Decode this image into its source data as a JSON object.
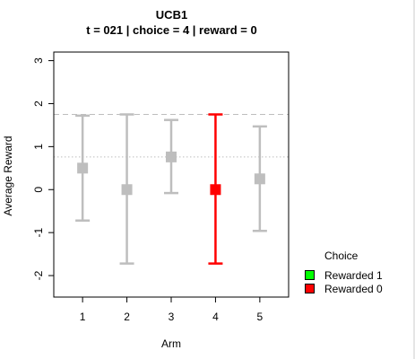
{
  "chart_data": {
    "type": "scatter",
    "title": "UCB1",
    "subtitle": "t = 021 | choice = 4 | reward = 0",
    "xlabel": "Arm",
    "ylabel": "Average Reward",
    "xlim": [
      0.35,
      5.65
    ],
    "ylim": [
      -2.5,
      3.2
    ],
    "x_ticks": [
      "1",
      "2",
      "3",
      "4",
      "5"
    ],
    "y_ticks": [
      "-2",
      "-1",
      "0",
      "1",
      "2",
      "3"
    ],
    "arms": [
      {
        "x": 1,
        "mean": 0.5,
        "lower": -0.72,
        "upper": 1.72,
        "chosen": false
      },
      {
        "x": 2,
        "mean": 0.0,
        "lower": -1.72,
        "upper": 1.75,
        "chosen": false
      },
      {
        "x": 3,
        "mean": 0.76,
        "lower": -0.08,
        "upper": 1.62,
        "chosen": false
      },
      {
        "x": 4,
        "mean": 0.0,
        "lower": -1.72,
        "upper": 1.75,
        "chosen": true
      },
      {
        "x": 5,
        "mean": 0.25,
        "lower": -0.96,
        "upper": 1.47,
        "chosen": false
      }
    ],
    "reference_lines": [
      {
        "y": 1.75,
        "style": "dashed"
      },
      {
        "y": 0.76,
        "style": "dotted"
      }
    ],
    "colors": {
      "unchosen": "#bebebe",
      "chosen_reward_0": "#ff0000",
      "reward_1": "#00ff00",
      "ref_line": "#bebebe"
    },
    "legend": {
      "title": "Choice",
      "placement": "bottom-right-outside",
      "items": [
        {
          "label": "Rewarded 1",
          "color": "#00ff00"
        },
        {
          "label": "Rewarded 0",
          "color": "#ff0000"
        }
      ]
    }
  }
}
